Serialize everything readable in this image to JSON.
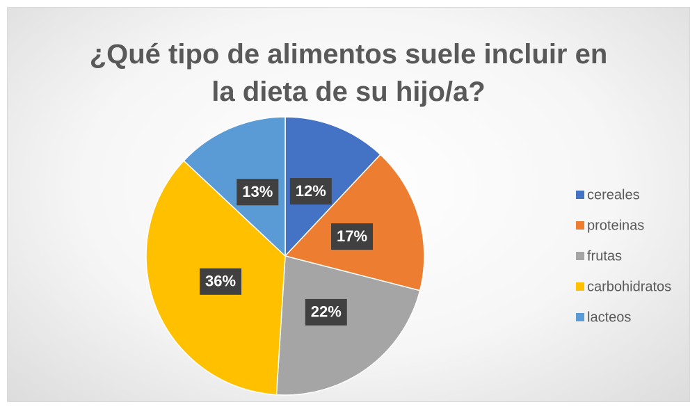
{
  "chart_data": {
    "type": "pie",
    "title": "¿Qué tipo de alimentos suele incluir en la dieta de su hijo/a?",
    "categories": [
      "cereales",
      "proteinas",
      "frutas",
      "carbohidratos",
      "lacteos"
    ],
    "values": [
      12,
      17,
      22,
      36,
      13
    ],
    "value_labels": [
      "12%",
      "17%",
      "22%",
      "36%",
      "13%"
    ],
    "colors": [
      "#4472c4",
      "#ed7d31",
      "#a5a5a5",
      "#ffc000",
      "#5b9bd5"
    ],
    "legend": "right"
  }
}
